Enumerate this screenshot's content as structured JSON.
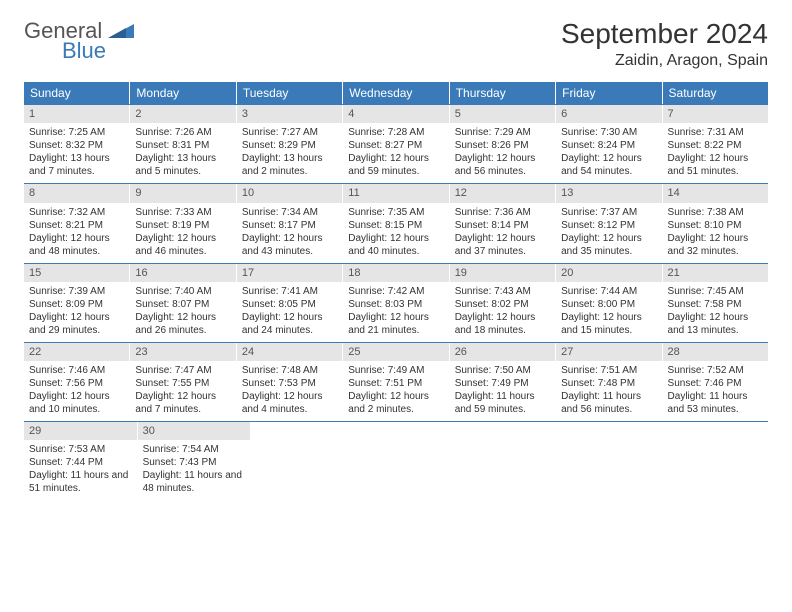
{
  "brand": {
    "word1": "General",
    "word2": "Blue"
  },
  "title": "September 2024",
  "location": "Zaidin, Aragon, Spain",
  "colors": {
    "header_bg": "#3a7ab8",
    "header_text": "#ffffff",
    "daynum_bg": "#e5e5e5",
    "row_border": "#3a7ab8",
    "body_text": "#333333"
  },
  "typography": {
    "title_fontsize": 28,
    "location_fontsize": 16,
    "dow_fontsize": 12,
    "cell_fontsize": 10
  },
  "dow": [
    "Sunday",
    "Monday",
    "Tuesday",
    "Wednesday",
    "Thursday",
    "Friday",
    "Saturday"
  ],
  "weeks": [
    [
      {
        "n": "1",
        "sr": "Sunrise: 7:25 AM",
        "ss": "Sunset: 8:32 PM",
        "dl": "Daylight: 13 hours and 7 minutes."
      },
      {
        "n": "2",
        "sr": "Sunrise: 7:26 AM",
        "ss": "Sunset: 8:31 PM",
        "dl": "Daylight: 13 hours and 5 minutes."
      },
      {
        "n": "3",
        "sr": "Sunrise: 7:27 AM",
        "ss": "Sunset: 8:29 PM",
        "dl": "Daylight: 13 hours and 2 minutes."
      },
      {
        "n": "4",
        "sr": "Sunrise: 7:28 AM",
        "ss": "Sunset: 8:27 PM",
        "dl": "Daylight: 12 hours and 59 minutes."
      },
      {
        "n": "5",
        "sr": "Sunrise: 7:29 AM",
        "ss": "Sunset: 8:26 PM",
        "dl": "Daylight: 12 hours and 56 minutes."
      },
      {
        "n": "6",
        "sr": "Sunrise: 7:30 AM",
        "ss": "Sunset: 8:24 PM",
        "dl": "Daylight: 12 hours and 54 minutes."
      },
      {
        "n": "7",
        "sr": "Sunrise: 7:31 AM",
        "ss": "Sunset: 8:22 PM",
        "dl": "Daylight: 12 hours and 51 minutes."
      }
    ],
    [
      {
        "n": "8",
        "sr": "Sunrise: 7:32 AM",
        "ss": "Sunset: 8:21 PM",
        "dl": "Daylight: 12 hours and 48 minutes."
      },
      {
        "n": "9",
        "sr": "Sunrise: 7:33 AM",
        "ss": "Sunset: 8:19 PM",
        "dl": "Daylight: 12 hours and 46 minutes."
      },
      {
        "n": "10",
        "sr": "Sunrise: 7:34 AM",
        "ss": "Sunset: 8:17 PM",
        "dl": "Daylight: 12 hours and 43 minutes."
      },
      {
        "n": "11",
        "sr": "Sunrise: 7:35 AM",
        "ss": "Sunset: 8:15 PM",
        "dl": "Daylight: 12 hours and 40 minutes."
      },
      {
        "n": "12",
        "sr": "Sunrise: 7:36 AM",
        "ss": "Sunset: 8:14 PM",
        "dl": "Daylight: 12 hours and 37 minutes."
      },
      {
        "n": "13",
        "sr": "Sunrise: 7:37 AM",
        "ss": "Sunset: 8:12 PM",
        "dl": "Daylight: 12 hours and 35 minutes."
      },
      {
        "n": "14",
        "sr": "Sunrise: 7:38 AM",
        "ss": "Sunset: 8:10 PM",
        "dl": "Daylight: 12 hours and 32 minutes."
      }
    ],
    [
      {
        "n": "15",
        "sr": "Sunrise: 7:39 AM",
        "ss": "Sunset: 8:09 PM",
        "dl": "Daylight: 12 hours and 29 minutes."
      },
      {
        "n": "16",
        "sr": "Sunrise: 7:40 AM",
        "ss": "Sunset: 8:07 PM",
        "dl": "Daylight: 12 hours and 26 minutes."
      },
      {
        "n": "17",
        "sr": "Sunrise: 7:41 AM",
        "ss": "Sunset: 8:05 PM",
        "dl": "Daylight: 12 hours and 24 minutes."
      },
      {
        "n": "18",
        "sr": "Sunrise: 7:42 AM",
        "ss": "Sunset: 8:03 PM",
        "dl": "Daylight: 12 hours and 21 minutes."
      },
      {
        "n": "19",
        "sr": "Sunrise: 7:43 AM",
        "ss": "Sunset: 8:02 PM",
        "dl": "Daylight: 12 hours and 18 minutes."
      },
      {
        "n": "20",
        "sr": "Sunrise: 7:44 AM",
        "ss": "Sunset: 8:00 PM",
        "dl": "Daylight: 12 hours and 15 minutes."
      },
      {
        "n": "21",
        "sr": "Sunrise: 7:45 AM",
        "ss": "Sunset: 7:58 PM",
        "dl": "Daylight: 12 hours and 13 minutes."
      }
    ],
    [
      {
        "n": "22",
        "sr": "Sunrise: 7:46 AM",
        "ss": "Sunset: 7:56 PM",
        "dl": "Daylight: 12 hours and 10 minutes."
      },
      {
        "n": "23",
        "sr": "Sunrise: 7:47 AM",
        "ss": "Sunset: 7:55 PM",
        "dl": "Daylight: 12 hours and 7 minutes."
      },
      {
        "n": "24",
        "sr": "Sunrise: 7:48 AM",
        "ss": "Sunset: 7:53 PM",
        "dl": "Daylight: 12 hours and 4 minutes."
      },
      {
        "n": "25",
        "sr": "Sunrise: 7:49 AM",
        "ss": "Sunset: 7:51 PM",
        "dl": "Daylight: 12 hours and 2 minutes."
      },
      {
        "n": "26",
        "sr": "Sunrise: 7:50 AM",
        "ss": "Sunset: 7:49 PM",
        "dl": "Daylight: 11 hours and 59 minutes."
      },
      {
        "n": "27",
        "sr": "Sunrise: 7:51 AM",
        "ss": "Sunset: 7:48 PM",
        "dl": "Daylight: 11 hours and 56 minutes."
      },
      {
        "n": "28",
        "sr": "Sunrise: 7:52 AM",
        "ss": "Sunset: 7:46 PM",
        "dl": "Daylight: 11 hours and 53 minutes."
      }
    ],
    [
      {
        "n": "29",
        "sr": "Sunrise: 7:53 AM",
        "ss": "Sunset: 7:44 PM",
        "dl": "Daylight: 11 hours and 51 minutes."
      },
      {
        "n": "30",
        "sr": "Sunrise: 7:54 AM",
        "ss": "Sunset: 7:43 PM",
        "dl": "Daylight: 11 hours and 48 minutes."
      },
      null,
      null,
      null,
      null,
      null
    ]
  ]
}
